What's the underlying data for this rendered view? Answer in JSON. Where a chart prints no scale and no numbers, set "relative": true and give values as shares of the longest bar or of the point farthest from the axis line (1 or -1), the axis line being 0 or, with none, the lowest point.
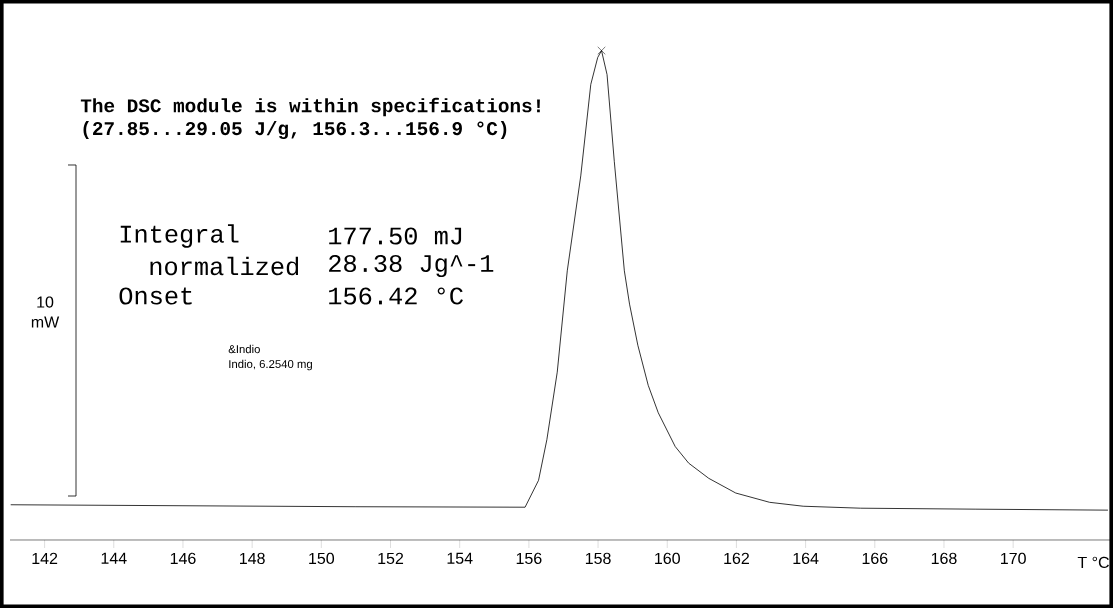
{
  "chart_data": {
    "type": "line",
    "relative": true,
    "xlabel": "T °C",
    "xlim": [
      141.0,
      172.8
    ],
    "xticks": [
      142,
      144,
      146,
      148,
      150,
      152,
      154,
      156,
      158,
      160,
      162,
      164,
      166,
      168,
      170
    ],
    "series": [
      {
        "color": "#000000",
        "x": [
          141.02,
          151.0,
          155.89,
          156.28,
          156.52,
          156.82,
          157.11,
          157.5,
          157.79,
          157.99,
          158.1,
          158.26,
          158.47,
          158.76,
          158.91,
          159.15,
          159.45,
          159.74,
          160.23,
          160.62,
          161.2,
          161.98,
          162.96,
          163.93,
          165.59,
          168.9,
          172.74
        ],
        "values": [
          0.072,
          0.068,
          0.067,
          0.122,
          0.205,
          0.343,
          0.55,
          0.744,
          0.931,
          0.986,
          1,
          0.951,
          0.773,
          0.55,
          0.482,
          0.398,
          0.316,
          0.26,
          0.191,
          0.157,
          0.126,
          0.096,
          0.077,
          0.069,
          0.065,
          0.063,
          0.061
        ]
      },
      {
        "type": "scatter",
        "marker": "cross",
        "color": "#000000",
        "x": [
          158.1
        ],
        "values": [
          1
        ]
      }
    ],
    "annotations": [
      "The DSC module is within specifications!",
      "(27.85...29.05 J/g, 156.3...156.9 °C)",
      "Integral",
      "177.50 mJ",
      "normalized",
      "28.38 Jg^-1",
      "Onset",
      "156.42 °C",
      "&Indio",
      "Indio, 6.2540 mg",
      "10 mW"
    ]
  }
}
